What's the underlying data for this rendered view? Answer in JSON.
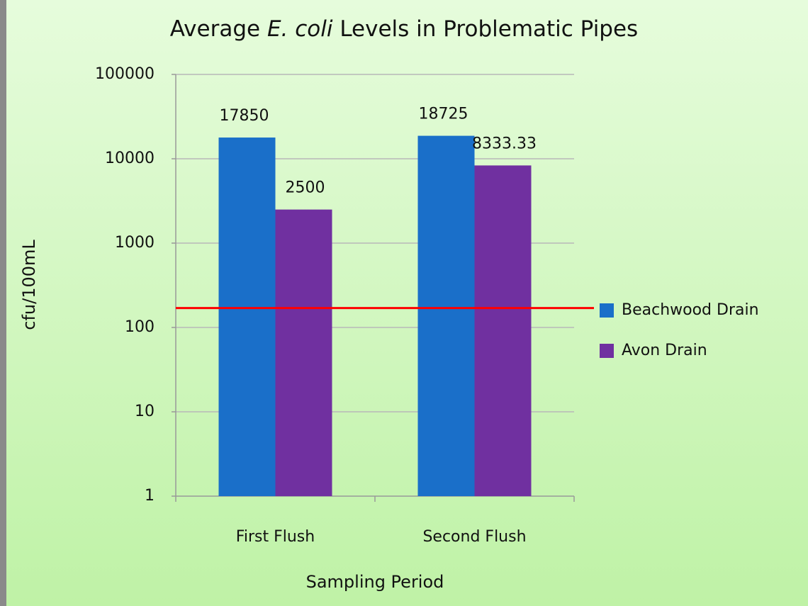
{
  "chart_data": {
    "type": "bar",
    "title": [
      "Average",
      "E. coli",
      "Levels in Problematic Pipes"
    ],
    "x_label": "Sampling Period",
    "y_label": "cfu/100mL",
    "categories": [
      "First Flush",
      "Second Flush"
    ],
    "series": [
      {
        "name": "Beachwood Drain",
        "color": "#1a6fc9",
        "values": [
          17850,
          18725
        ]
      },
      {
        "name": "Avon Drain",
        "color": "#7030a0",
        "values": [
          2500,
          8333.33
        ]
      }
    ],
    "ylim": [
      1,
      100000
    ],
    "yticks": [
      1,
      10,
      100,
      1000,
      10000,
      100000
    ],
    "log_scale": true,
    "grid": true,
    "legend": "right",
    "reference_line": {
      "value": 170,
      "color": "#ff0000"
    }
  }
}
